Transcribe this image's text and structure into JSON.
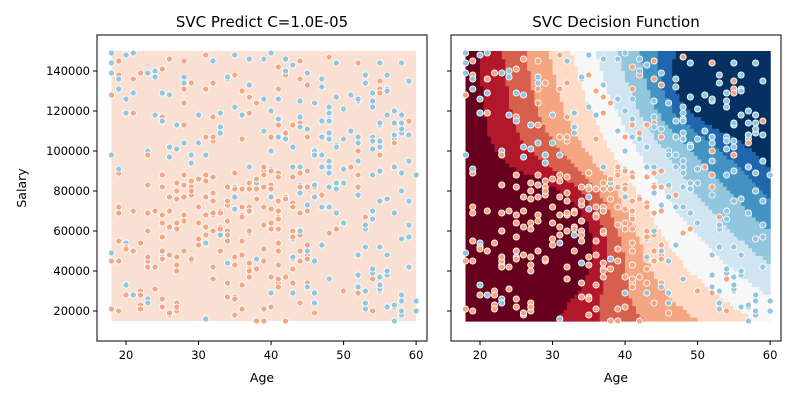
{
  "chart_data": [
    {
      "type": "scatter",
      "title": "SVC Predict C=1.0E-05",
      "xlabel": "Age",
      "ylabel": "Salary",
      "xlim": [
        16,
        61.5
      ],
      "ylim": [
        5000,
        158000
      ],
      "xticks": [
        "20",
        "30",
        "40",
        "50",
        "60"
      ],
      "yticks": [
        "20000",
        "40000",
        "60000",
        "80000",
        "100000",
        "120000",
        "140000"
      ],
      "background_region": {
        "x": [
          18,
          60
        ],
        "y": [
          15000,
          150000
        ],
        "color": "#f9e0d3"
      },
      "grid": false,
      "legend": "none"
    },
    {
      "type": "scatter",
      "title": "SVC Decision Function",
      "xlabel": "Age",
      "ylabel": "",
      "xlim": [
        16,
        61.5
      ],
      "ylim": [
        5000,
        158000
      ],
      "xticks": [
        "20",
        "30",
        "40",
        "50",
        "60"
      ],
      "yticks": [],
      "contour_region": {
        "x": [
          18,
          60
        ],
        "y": [
          15000,
          150000
        ]
      },
      "grid": false,
      "legend": "none"
    }
  ],
  "colors": {
    "class0": "#f4a582",
    "class1": "#92c5de",
    "marker_edge": "#ffffff",
    "predict_background": "#f9e0d3",
    "contour_levels": [
      "#67001f",
      "#b2182b",
      "#d6604d",
      "#f4a582",
      "#fddbc7",
      "#f7f7f7",
      "#d1e5f0",
      "#92c5de",
      "#4393c3",
      "#2166ac",
      "#053061"
    ]
  }
}
